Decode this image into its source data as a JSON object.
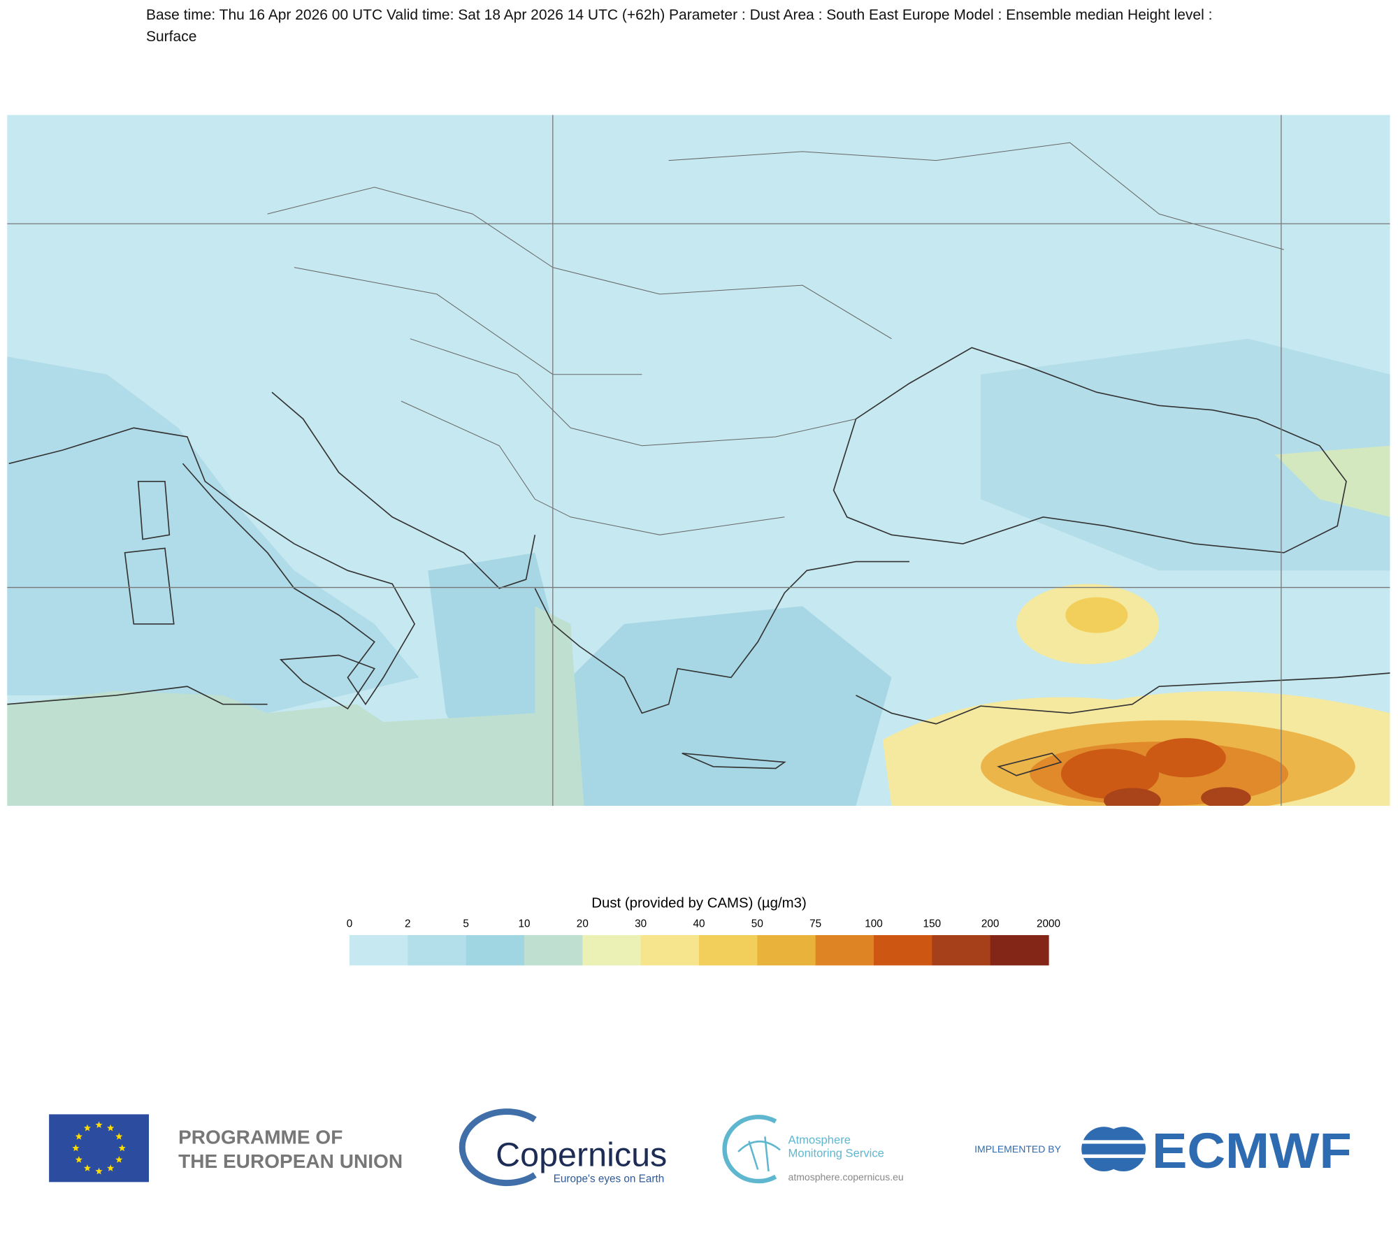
{
  "header": {
    "title": "Base time: Thu 16 Apr 2026 00 UTC Valid time: Sat 18 Apr 2026 14 UTC (+62h) Parameter : Dust Area : South East Europe Model : Ensemble median Height level : Surface"
  },
  "colorbar": {
    "title": "Dust (provided by CAMS) (µg/m3)",
    "levels": [
      0,
      2,
      5,
      10,
      20,
      30,
      40,
      50,
      75,
      100,
      150,
      200,
      2000
    ],
    "colors": [
      "#c6e8f0",
      "#b2dfea",
      "#a0d5e2",
      "#bfe0d0",
      "#ebf0b4",
      "#f7e58e",
      "#f2cf5a",
      "#e9b23a",
      "#df8424",
      "#cd5613",
      "#a5401b",
      "#832617"
    ]
  },
  "footer": {
    "eu": [
      "PROGRAMME OF",
      "THE EUROPEAN UNION"
    ],
    "copernicus": {
      "name": "Copernicus",
      "tagline": "Europe's eyes on Earth"
    },
    "cams": {
      "name": [
        "Atmosphere",
        "Monitoring Service"
      ],
      "url": "atmosphere.copernicus.eu"
    },
    "ecmwf": {
      "prefix": "IMPLEMENTED BY",
      "name": "ECMWF"
    }
  }
}
